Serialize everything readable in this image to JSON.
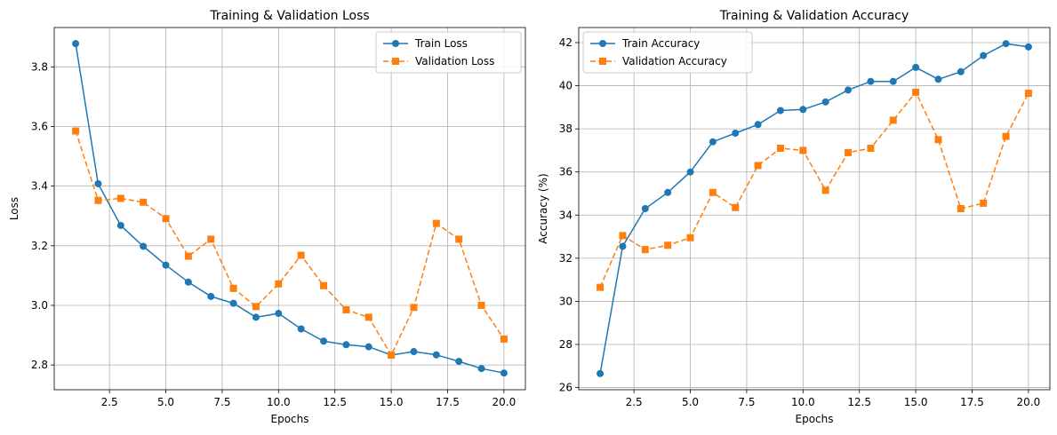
{
  "chart_data": [
    {
      "type": "line",
      "title": "Training & Validation Loss",
      "xlabel": "Epochs",
      "ylabel": "Loss",
      "xlim": [
        0.05,
        20.95
      ],
      "ylim": [
        2.717,
        3.932
      ],
      "xticks": [
        2.5,
        5.0,
        7.5,
        10.0,
        12.5,
        15.0,
        17.5,
        20.0
      ],
      "xtick_labels": [
        "2.5",
        "5.0",
        "7.5",
        "10.0",
        "12.5",
        "15.0",
        "17.5",
        "20.0"
      ],
      "yticks": [
        2.8,
        3.0,
        3.2,
        3.4,
        3.6,
        3.8
      ],
      "ytick_labels": [
        "2.8",
        "3.0",
        "3.2",
        "3.4",
        "3.6",
        "3.8"
      ],
      "grid": true,
      "legend_position": "top-right",
      "x": [
        1,
        2,
        3,
        4,
        5,
        6,
        7,
        8,
        9,
        10,
        11,
        12,
        13,
        14,
        15,
        16,
        17,
        18,
        19,
        20
      ],
      "series": [
        {
          "name": "Train Loss",
          "color": "#1f77b4",
          "marker": "circle",
          "linestyle": "solid",
          "values": [
            3.878,
            3.408,
            3.268,
            3.198,
            3.135,
            3.078,
            3.03,
            3.007,
            2.96,
            2.973,
            2.921,
            2.88,
            2.868,
            2.861,
            2.833,
            2.845,
            2.834,
            2.812,
            2.788,
            2.773
          ]
        },
        {
          "name": "Validation Loss",
          "color": "#ff7f0e",
          "marker": "square",
          "linestyle": "dashed",
          "values": [
            3.585,
            3.352,
            3.359,
            3.346,
            3.291,
            3.165,
            3.222,
            3.057,
            2.996,
            3.072,
            3.168,
            3.066,
            2.985,
            2.96,
            2.833,
            2.993,
            3.275,
            3.222,
            3.0,
            2.887
          ]
        }
      ]
    },
    {
      "type": "line",
      "title": "Training & Validation Accuracy",
      "xlabel": "Epochs",
      "ylabel": "Accuracy (%)",
      "xlim": [
        0.05,
        20.95
      ],
      "ylim": [
        25.9,
        42.7
      ],
      "xticks": [
        2.5,
        5.0,
        7.5,
        10.0,
        12.5,
        15.0,
        17.5,
        20.0
      ],
      "xtick_labels": [
        "2.5",
        "5.0",
        "7.5",
        "10.0",
        "12.5",
        "15.0",
        "17.5",
        "20.0"
      ],
      "yticks": [
        26,
        28,
        30,
        32,
        34,
        36,
        38,
        40,
        42
      ],
      "ytick_labels": [
        "26",
        "28",
        "30",
        "32",
        "34",
        "36",
        "38",
        "40",
        "42"
      ],
      "grid": true,
      "legend_position": "top-left",
      "x": [
        1,
        2,
        3,
        4,
        5,
        6,
        7,
        8,
        9,
        10,
        11,
        12,
        13,
        14,
        15,
        16,
        17,
        18,
        19,
        20
      ],
      "series": [
        {
          "name": "Train Accuracy",
          "color": "#1f77b4",
          "marker": "circle",
          "linestyle": "solid",
          "values": [
            26.65,
            32.55,
            34.3,
            35.05,
            36.0,
            37.4,
            37.8,
            38.2,
            38.85,
            38.9,
            39.25,
            39.8,
            40.2,
            40.2,
            40.85,
            40.3,
            40.65,
            41.4,
            41.95,
            41.8
          ]
        },
        {
          "name": "Validation Accuracy",
          "color": "#ff7f0e",
          "marker": "square",
          "linestyle": "dashed",
          "values": [
            30.65,
            33.05,
            32.4,
            32.6,
            32.95,
            35.05,
            34.35,
            36.3,
            37.1,
            37.0,
            35.15,
            36.9,
            37.1,
            38.4,
            39.7,
            37.5,
            34.3,
            34.55,
            37.65,
            39.65
          ]
        }
      ]
    }
  ]
}
